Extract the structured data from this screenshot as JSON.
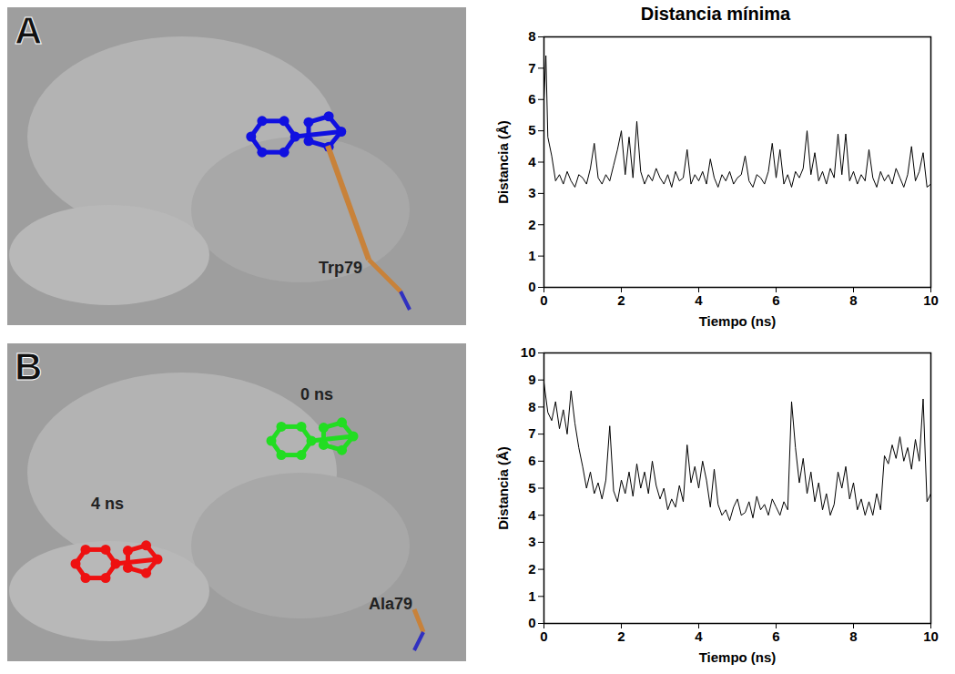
{
  "chart_data": [
    {
      "type": "line",
      "panel": "A",
      "title": "Distancia mínima",
      "annotations": [
        "Trp79"
      ],
      "x_label": "Tiempo (ns)",
      "y_label": "Distancia (Å)",
      "color": "#000000",
      "xlim": [
        0,
        10
      ],
      "xticks": [
        0,
        2,
        4,
        6,
        8,
        10
      ],
      "ylim": [
        0,
        8
      ],
      "yticks": [
        0,
        1,
        2,
        3,
        4,
        5,
        6,
        7,
        8
      ],
      "x": [
        0,
        0.05,
        0.1,
        0.2,
        0.3,
        0.4,
        0.5,
        0.6,
        0.7,
        0.8,
        0.9,
        1.0,
        1.1,
        1.2,
        1.3,
        1.4,
        1.5,
        1.6,
        1.7,
        1.8,
        1.9,
        2.0,
        2.1,
        2.2,
        2.3,
        2.4,
        2.5,
        2.6,
        2.7,
        2.8,
        2.9,
        3.0,
        3.1,
        3.2,
        3.3,
        3.4,
        3.5,
        3.6,
        3.7,
        3.8,
        3.9,
        4.0,
        4.1,
        4.2,
        4.3,
        4.4,
        4.5,
        4.6,
        4.7,
        4.8,
        4.9,
        5.0,
        5.1,
        5.2,
        5.3,
        5.4,
        5.5,
        5.6,
        5.7,
        5.8,
        5.9,
        6.0,
        6.1,
        6.2,
        6.3,
        6.4,
        6.5,
        6.6,
        6.7,
        6.8,
        6.9,
        7.0,
        7.1,
        7.2,
        7.3,
        7.4,
        7.5,
        7.6,
        7.7,
        7.8,
        7.9,
        8.0,
        8.1,
        8.2,
        8.3,
        8.4,
        8.5,
        8.6,
        8.7,
        8.8,
        8.9,
        9.0,
        9.1,
        9.2,
        9.3,
        9.4,
        9.5,
        9.6,
        9.7,
        9.8,
        9.9,
        10.0
      ],
      "values": [
        6.0,
        7.4,
        4.8,
        4.2,
        3.4,
        3.6,
        3.3,
        3.7,
        3.4,
        3.2,
        3.6,
        3.5,
        3.3,
        3.8,
        4.6,
        3.5,
        3.3,
        3.6,
        3.4,
        3.9,
        4.4,
        5.0,
        3.6,
        4.8,
        3.5,
        5.3,
        3.7,
        3.3,
        3.6,
        3.4,
        3.8,
        3.5,
        3.3,
        3.6,
        3.2,
        3.7,
        3.4,
        3.5,
        4.4,
        3.3,
        3.6,
        3.4,
        3.7,
        3.3,
        4.1,
        3.5,
        3.2,
        3.6,
        3.4,
        3.7,
        3.3,
        3.5,
        3.6,
        4.2,
        3.4,
        3.2,
        3.6,
        3.5,
        3.3,
        3.7,
        4.6,
        3.5,
        4.4,
        3.3,
        3.6,
        3.2,
        3.7,
        3.5,
        3.8,
        5.0,
        3.6,
        4.3,
        3.4,
        3.7,
        3.3,
        3.8,
        3.5,
        4.9,
        3.6,
        4.9,
        3.4,
        3.7,
        3.3,
        3.6,
        3.4,
        4.4,
        3.5,
        3.2,
        3.7,
        3.4,
        3.6,
        3.3,
        3.8,
        3.5,
        3.2,
        3.6,
        4.5,
        3.4,
        3.7,
        4.3,
        3.2,
        3.3
      ]
    },
    {
      "type": "line",
      "panel": "B",
      "annotations": [
        "0 ns",
        "4 ns",
        "Ala79"
      ],
      "x_label": "Tiempo (ns)",
      "y_label": "Distancia (Å)",
      "color": "#000000",
      "xlim": [
        0,
        10
      ],
      "xticks": [
        0,
        2,
        4,
        6,
        8,
        10
      ],
      "ylim": [
        0,
        10
      ],
      "yticks": [
        0,
        1,
        2,
        3,
        4,
        5,
        6,
        7,
        8,
        9,
        10
      ],
      "x": [
        0,
        0.1,
        0.2,
        0.3,
        0.4,
        0.5,
        0.6,
        0.7,
        0.8,
        0.9,
        1.0,
        1.1,
        1.2,
        1.3,
        1.4,
        1.5,
        1.6,
        1.7,
        1.8,
        1.9,
        2.0,
        2.1,
        2.2,
        2.3,
        2.4,
        2.5,
        2.6,
        2.7,
        2.8,
        2.9,
        3.0,
        3.1,
        3.2,
        3.3,
        3.4,
        3.5,
        3.6,
        3.7,
        3.8,
        3.9,
        4.0,
        4.1,
        4.2,
        4.3,
        4.4,
        4.5,
        4.6,
        4.7,
        4.8,
        4.9,
        5.0,
        5.1,
        5.2,
        5.3,
        5.4,
        5.5,
        5.6,
        5.7,
        5.8,
        5.9,
        6.0,
        6.1,
        6.2,
        6.3,
        6.4,
        6.5,
        6.6,
        6.7,
        6.8,
        6.9,
        7.0,
        7.1,
        7.2,
        7.3,
        7.4,
        7.5,
        7.6,
        7.7,
        7.8,
        7.9,
        8.0,
        8.1,
        8.2,
        8.3,
        8.4,
        8.5,
        8.6,
        8.7,
        8.8,
        8.9,
        9.0,
        9.1,
        9.2,
        9.3,
        9.4,
        9.5,
        9.6,
        9.7,
        9.8,
        9.9,
        10.0
      ],
      "values": [
        8.9,
        7.8,
        7.5,
        8.2,
        7.2,
        7.9,
        7.0,
        8.6,
        7.4,
        6.5,
        5.8,
        5.0,
        5.6,
        4.8,
        5.2,
        4.6,
        5.3,
        7.3,
        4.9,
        4.5,
        5.3,
        4.8,
        5.6,
        4.7,
        5.9,
        5.0,
        5.6,
        4.8,
        6.0,
        5.1,
        4.6,
        5.0,
        4.2,
        4.6,
        4.3,
        5.1,
        4.5,
        6.6,
        5.2,
        5.8,
        5.0,
        6.0,
        5.3,
        4.3,
        5.7,
        4.4,
        4.0,
        4.2,
        3.8,
        4.3,
        4.6,
        4.0,
        4.1,
        4.5,
        3.9,
        4.7,
        4.2,
        4.4,
        4.0,
        4.6,
        4.3,
        4.0,
        4.5,
        4.2,
        8.2,
        6.5,
        5.2,
        6.1,
        4.8,
        5.6,
        4.5,
        5.2,
        4.2,
        4.8,
        4.0,
        4.4,
        5.6,
        5.0,
        5.8,
        4.6,
        5.2,
        4.2,
        4.6,
        4.0,
        4.5,
        4.0,
        4.8,
        4.2,
        6.2,
        5.9,
        6.6,
        6.1,
        6.9,
        6.0,
        6.5,
        5.7,
        6.8,
        6.0,
        8.3,
        4.5,
        4.8
      ]
    }
  ]
}
